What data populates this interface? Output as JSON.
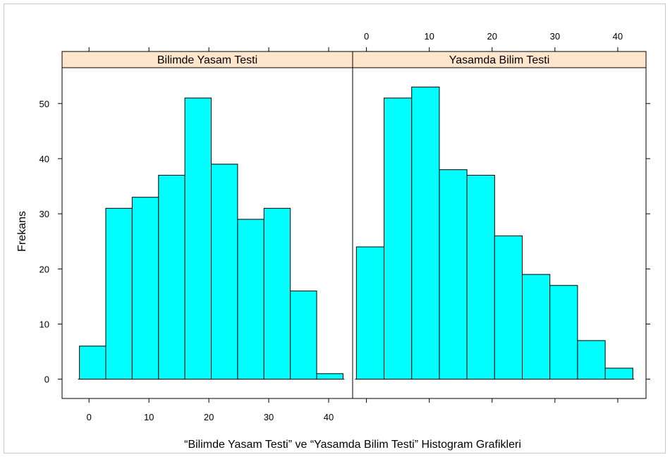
{
  "chart_data": {
    "type": "bar",
    "xlabel": "“Bilimde Yasam Testi” ve “Yasamda Bilim Testi” Histogram Grafikleri",
    "ylabel": "Frekans",
    "ylim": [
      -3.5,
      56.5
    ],
    "yticks": [
      0,
      10,
      20,
      30,
      40,
      50
    ],
    "xticks": [
      0,
      10,
      20,
      30,
      40
    ],
    "colors": {
      "bar_fill": "#00FFFF",
      "strip_bg": "#FFE5CC",
      "bar_stroke": "#000000"
    },
    "panels": [
      {
        "name": "Bilimde Yasam Testi",
        "xlim": [
          -4.5,
          44
        ],
        "bin_edges": [
          -1.6,
          2.8,
          7.2,
          11.6,
          16.0,
          20.4,
          24.8,
          29.2,
          33.6,
          38.0,
          42.4
        ],
        "values": [
          6,
          31,
          33,
          37,
          51,
          39,
          29,
          31,
          16,
          1
        ]
      },
      {
        "name": "Yasamda Bilim Testi",
        "xlim": [
          -2.2,
          44.5
        ],
        "bin_edges": [
          -1.6,
          2.8,
          7.2,
          11.6,
          16.0,
          20.4,
          24.8,
          29.2,
          33.6,
          38.0,
          42.4
        ],
        "values": [
          24,
          51,
          53,
          38,
          37,
          26,
          19,
          17,
          7,
          2
        ]
      }
    ]
  }
}
